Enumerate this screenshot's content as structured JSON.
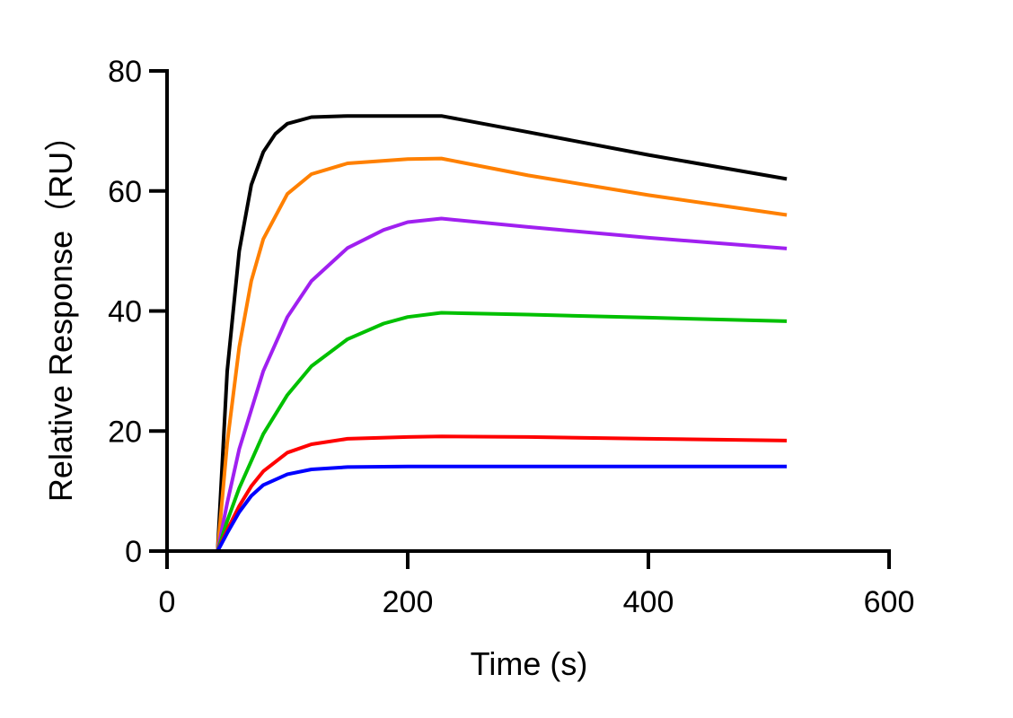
{
  "chart_data": {
    "type": "line",
    "title": "",
    "xlabel": "Time (s)",
    "ylabel": "Relative Response（RU）",
    "xlim": [
      0,
      600
    ],
    "ylim": [
      0,
      80
    ],
    "xticks": [
      0,
      200,
      400,
      600
    ],
    "yticks": [
      0,
      20,
      40,
      60,
      80
    ],
    "grid": false,
    "series": [
      {
        "color": "#000000",
        "x": [
          0,
          42,
          50,
          60,
          70,
          80,
          90,
          100,
          120,
          150,
          200,
          228,
          300,
          400,
          515
        ],
        "y": [
          0,
          0,
          30,
          50,
          61,
          66.5,
          69.5,
          71.2,
          72.3,
          72.5,
          72.5,
          72.5,
          69.8,
          66,
          62
        ]
      },
      {
        "color": "#ff8000",
        "x": [
          0,
          42,
          50,
          60,
          70,
          80,
          100,
          120,
          150,
          200,
          228,
          300,
          400,
          515
        ],
        "y": [
          0,
          0,
          18,
          34,
          45,
          52,
          59.5,
          62.8,
          64.6,
          65.3,
          65.4,
          62.6,
          59.3,
          56
        ]
      },
      {
        "color": "#a020f0",
        "x": [
          0,
          42,
          50,
          60,
          80,
          100,
          120,
          150,
          180,
          200,
          228,
          300,
          400,
          515
        ],
        "y": [
          0,
          0,
          8,
          17,
          30,
          39,
          45,
          50.5,
          53.5,
          54.8,
          55.4,
          54,
          52.2,
          50.4
        ]
      },
      {
        "color": "#00c000",
        "x": [
          0,
          42,
          50,
          60,
          80,
          100,
          120,
          150,
          180,
          200,
          228,
          300,
          400,
          515
        ],
        "y": [
          0,
          0,
          5,
          10.5,
          19.5,
          26,
          30.8,
          35.3,
          37.9,
          39,
          39.7,
          39.4,
          38.9,
          38.3
        ]
      },
      {
        "color": "#ff0000",
        "x": [
          0,
          42,
          50,
          60,
          70,
          80,
          100,
          120,
          150,
          200,
          228,
          300,
          400,
          515
        ],
        "y": [
          0,
          0,
          3.5,
          7.5,
          10.8,
          13.3,
          16.4,
          17.8,
          18.7,
          19,
          19.1,
          19,
          18.7,
          18.4
        ]
      },
      {
        "color": "#0000ff",
        "x": [
          0,
          42,
          50,
          60,
          70,
          80,
          100,
          120,
          150,
          200,
          228,
          300,
          400,
          515
        ],
        "y": [
          0,
          0,
          3,
          6.5,
          9.2,
          11,
          12.8,
          13.6,
          14,
          14.1,
          14.1,
          14.1,
          14.1,
          14.1
        ]
      }
    ]
  }
}
